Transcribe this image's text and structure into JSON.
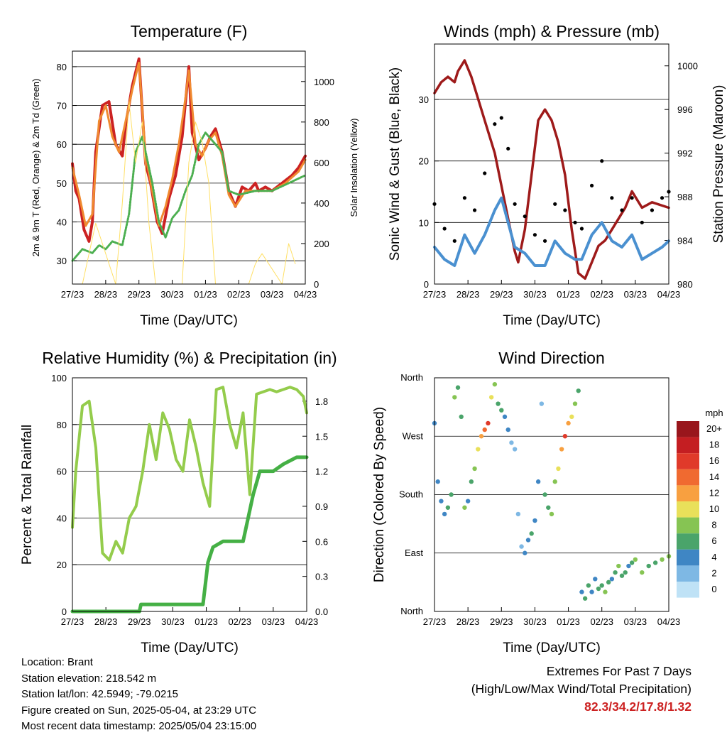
{
  "x_ticks": [
    "27/23",
    "28/23",
    "29/23",
    "30/23",
    "01/23",
    "02/23",
    "03/23",
    "04/23"
  ],
  "info": {
    "location": "Location: Brant",
    "elevation": "Station elevation: 218.542 m",
    "latlon": "Station lat/lon: 42.5949; -79.0215",
    "created": "Figure created on Sun, 2025-05-04, at 23:29 UTC",
    "recent": "Most recent data timestamp: 2025/05/04 23:15:00"
  },
  "extremes": {
    "line1": "Extremes For Past 7 Days",
    "line2": "(High/Low/Max Wind/Total Precipitation)",
    "values": "82.3/34.2/17.8/1.32"
  },
  "colors": {
    "temp2m": "#cc2222",
    "temp9m": "#f08a30",
    "dewpoint": "#4caf50",
    "solar": "#ffe066",
    "wind": "#4a90d0",
    "gust": "#000000",
    "pressure": "#9e1a1a",
    "rh": "#94cc4c",
    "precip": "#45b045"
  },
  "chart_data": [
    {
      "type": "line",
      "title": "Temperature (F)",
      "xlabel": "Time (Day/UTC)",
      "ylabel": "2m & 9m T (Red, Orange) & 2m Td (Green)",
      "ylabel_right": "Solar Insolation (Yellow)",
      "ylim": [
        24,
        84
      ],
      "yticks": [
        30,
        40,
        50,
        60,
        70,
        80
      ],
      "ylim_right": [
        0,
        1150
      ],
      "yticks_right": [
        0,
        200,
        400,
        600,
        800,
        1000
      ],
      "x_day_range": [
        0,
        7
      ],
      "series": [
        {
          "key": "temp2m",
          "x": [
            0,
            0.1,
            0.2,
            0.35,
            0.5,
            0.6,
            0.7,
            0.9,
            1.1,
            1.3,
            1.5,
            1.6,
            1.8,
            2.0,
            2.2,
            2.35,
            2.55,
            2.7,
            2.9,
            3.1,
            3.3,
            3.5,
            3.6,
            3.8,
            4.0,
            4.15,
            4.3,
            4.5,
            4.7,
            4.9,
            5.1,
            5.3,
            5.5,
            5.6,
            5.8,
            6.0,
            6.3,
            6.6,
            6.8,
            7.0
          ],
          "y": [
            55,
            48,
            46,
            38,
            35,
            40,
            58,
            70,
            71,
            60,
            57,
            65,
            75,
            82,
            55,
            50,
            40,
            37,
            46,
            52,
            62,
            80,
            63,
            56,
            59,
            62,
            64,
            58,
            48,
            44,
            49,
            48,
            50,
            48,
            49,
            48,
            50,
            52,
            54,
            57
          ]
        },
        {
          "key": "temp9m",
          "x": [
            0,
            0.2,
            0.4,
            0.6,
            0.8,
            1.0,
            1.2,
            1.4,
            1.6,
            1.8,
            2.0,
            2.2,
            2.4,
            2.6,
            2.8,
            3.0,
            3.2,
            3.4,
            3.5,
            3.7,
            3.9,
            4.1,
            4.3,
            4.5,
            4.7,
            4.9,
            5.2,
            5.6,
            6.0,
            6.4,
            6.8,
            7.0
          ],
          "y": [
            54,
            47,
            39,
            42,
            66,
            70,
            62,
            58,
            66,
            74,
            81,
            57,
            48,
            39,
            44,
            51,
            60,
            72,
            79,
            60,
            57,
            61,
            63,
            57,
            47,
            44,
            48,
            48,
            48,
            50,
            53,
            56
          ]
        },
        {
          "key": "dewpoint",
          "x": [
            0,
            0.3,
            0.6,
            0.8,
            1.0,
            1.2,
            1.5,
            1.7,
            1.9,
            2.1,
            2.4,
            2.6,
            2.8,
            3.0,
            3.2,
            3.4,
            3.6,
            3.8,
            4.0,
            4.3,
            4.5,
            4.7,
            5.0,
            5.5,
            6.0,
            6.5,
            7.0
          ],
          "y": [
            30,
            33,
            32,
            34,
            33,
            35,
            34,
            42,
            58,
            62,
            50,
            40,
            36,
            41,
            43,
            48,
            52,
            60,
            63,
            60,
            58,
            48,
            47,
            48,
            48,
            50,
            52
          ]
        },
        {
          "key": "solar",
          "x": [
            0.3,
            0.5,
            0.7,
            0.9,
            1.3,
            1.5,
            1.7,
            1.9,
            2.1,
            2.3,
            2.5,
            3.3,
            3.5,
            3.7,
            3.9,
            4.1,
            4.3,
            5.3,
            5.5,
            5.7,
            6.3,
            6.5,
            6.7
          ],
          "y": [
            0,
            150,
            300,
            200,
            0,
            400,
            900,
            600,
            800,
            300,
            0,
            0,
            600,
            800,
            700,
            500,
            0,
            0,
            100,
            150,
            0,
            200,
            100
          ]
        }
      ]
    },
    {
      "type": "line",
      "title": "Winds (mph) & Pressure (mb)",
      "xlabel": "Time (Day/UTC)",
      "ylabel": "Sonic Wind & Gust (Blue, Black)",
      "ylabel_right": "Station Pressure (Maroon)",
      "ylim": [
        0,
        39
      ],
      "yticks": [
        0,
        10,
        20,
        30
      ],
      "ylim_right": [
        980,
        1002
      ],
      "yticks_right": [
        980,
        984,
        988,
        992,
        996,
        1000
      ],
      "x_day_range": [
        0,
        7
      ],
      "series": [
        {
          "key": "pressure",
          "x": [
            0,
            0.2,
            0.4,
            0.6,
            0.7,
            0.9,
            1.1,
            1.3,
            1.5,
            1.8,
            2.0,
            2.2,
            2.4,
            2.5,
            2.7,
            2.9,
            3.1,
            3.3,
            3.5,
            3.7,
            3.9,
            4.1,
            4.3,
            4.5,
            4.7,
            4.9,
            5.1,
            5.3,
            5.5,
            5.7,
            5.9,
            6.2,
            6.5,
            7.0
          ],
          "y": [
            997.5,
            998.5,
            999,
            998.5,
            999.5,
            1000.5,
            999,
            997,
            995,
            992,
            989,
            986,
            983,
            982,
            985,
            990,
            995,
            996,
            995,
            993,
            990,
            985,
            981,
            980.5,
            982,
            983.5,
            984,
            985,
            986,
            987,
            988.5,
            987,
            987.5,
            987
          ]
        },
        {
          "key": "wind",
          "x": [
            0,
            0.3,
            0.6,
            0.9,
            1.2,
            1.5,
            1.8,
            2.0,
            2.2,
            2.4,
            2.7,
            3.0,
            3.3,
            3.6,
            3.9,
            4.2,
            4.4,
            4.7,
            5.0,
            5.3,
            5.6,
            5.9,
            6.2,
            6.5,
            6.8,
            7.0
          ],
          "y": [
            6,
            4,
            3,
            8,
            5,
            8,
            12,
            14,
            10,
            6,
            5,
            3,
            3,
            7,
            5,
            4,
            4,
            8,
            10,
            7,
            6,
            8,
            4,
            5,
            6,
            7
          ]
        },
        {
          "key": "gust",
          "x": [
            0,
            0.3,
            0.6,
            0.9,
            1.2,
            1.5,
            1.8,
            2.0,
            2.2,
            2.4,
            2.7,
            3.0,
            3.3,
            3.6,
            3.9,
            4.2,
            4.4,
            4.7,
            5.0,
            5.3,
            5.6,
            5.9,
            6.2,
            6.5,
            6.8,
            7.0
          ],
          "y": [
            13,
            9,
            7,
            14,
            12,
            18,
            26,
            27,
            22,
            13,
            11,
            8,
            7,
            13,
            12,
            10,
            9,
            16,
            20,
            14,
            12,
            14,
            10,
            12,
            14,
            15
          ]
        }
      ]
    },
    {
      "type": "line",
      "title": "Relative Humidity (%) & Precipitation (in)",
      "xlabel": "Time (Day/UTC)",
      "ylabel": "Percent & Total Rainfall",
      "ylim": [
        0,
        100
      ],
      "yticks": [
        0,
        20,
        40,
        60,
        80,
        100
      ],
      "ylim_right": [
        0,
        2.0
      ],
      "yticks_right": [
        "0.0",
        "0.3",
        "0.6",
        "0.9",
        "1.2",
        "1.5",
        "1.8"
      ],
      "x_day_range": [
        0,
        7
      ],
      "series": [
        {
          "key": "rh",
          "x": [
            0,
            0.1,
            0.3,
            0.5,
            0.7,
            0.9,
            1.1,
            1.3,
            1.5,
            1.7,
            1.9,
            2.1,
            2.3,
            2.5,
            2.7,
            2.9,
            3.1,
            3.3,
            3.5,
            3.7,
            3.9,
            4.1,
            4.3,
            4.5,
            4.7,
            4.9,
            5.1,
            5.3,
            5.5,
            5.7,
            5.9,
            6.1,
            6.3,
            6.5,
            6.7,
            6.9,
            7.0
          ],
          "y": [
            36,
            60,
            88,
            90,
            70,
            25,
            22,
            30,
            25,
            40,
            45,
            60,
            80,
            65,
            85,
            78,
            65,
            60,
            82,
            70,
            55,
            45,
            95,
            96,
            80,
            70,
            85,
            50,
            93,
            94,
            95,
            94,
            95,
            96,
            95,
            92,
            85
          ]
        },
        {
          "key": "precip",
          "x": [
            0,
            1.0,
            2.0,
            2.05,
            3.0,
            3.9,
            4.0,
            4.05,
            4.2,
            4.5,
            5.0,
            5.1,
            5.4,
            5.6,
            5.8,
            6.0,
            6.3,
            6.7,
            7.0
          ],
          "y": [
            0,
            0,
            0,
            0.06,
            0.06,
            0.06,
            0.3,
            0.42,
            0.55,
            0.6,
            0.6,
            0.6,
            1.0,
            1.2,
            1.2,
            1.2,
            1.26,
            1.32,
            1.32
          ]
        }
      ]
    },
    {
      "type": "scatter",
      "title": "Wind Direction",
      "xlabel": "Time (Day/UTC)",
      "ylabel": "Direction (Colored By Speed)",
      "y_categories": [
        "North",
        "East",
        "South",
        "West",
        "North"
      ],
      "x_day_range": [
        0,
        7
      ],
      "colorbar_title": "mph",
      "colorbar_labels": [
        "20+",
        "18",
        "16",
        "14",
        "12",
        "10",
        "8",
        "6",
        "4",
        "2",
        "0"
      ],
      "colorbar_colors": [
        "#99161c",
        "#c41e22",
        "#e03a2a",
        "#f06a30",
        "#f8a040",
        "#e9e05a",
        "#86c453",
        "#4aa46a",
        "#3f86c4",
        "#7eb8e4",
        "#bfe2f6"
      ],
      "points_deg": {
        "x": [
          0,
          0.1,
          0.2,
          0.3,
          0.4,
          0.5,
          0.6,
          0.7,
          0.8,
          0.9,
          1.0,
          1.1,
          1.2,
          1.3,
          1.4,
          1.5,
          1.6,
          1.7,
          1.8,
          1.9,
          2.0,
          2.1,
          2.2,
          2.3,
          2.4,
          2.5,
          2.6,
          2.7,
          2.8,
          2.9,
          3.0,
          3.1,
          3.2,
          3.3,
          3.4,
          3.5,
          3.6,
          3.7,
          3.8,
          3.9,
          4.0,
          4.1,
          4.2,
          4.3,
          4.4,
          4.5,
          4.6,
          4.7,
          4.8,
          4.9,
          5.0,
          5.1,
          5.2,
          5.3,
          5.4,
          5.5,
          5.6,
          5.7,
          5.8,
          5.9,
          6.0,
          6.2,
          6.4,
          6.6,
          6.8,
          7.0
        ],
        "y": [
          290,
          200,
          170,
          150,
          160,
          180,
          330,
          345,
          300,
          160,
          170,
          200,
          220,
          250,
          270,
          280,
          290,
          330,
          350,
          320,
          310,
          300,
          280,
          260,
          250,
          150,
          100,
          90,
          110,
          120,
          140,
          200,
          320,
          180,
          160,
          150,
          200,
          220,
          250,
          270,
          290,
          300,
          320,
          340,
          30,
          20,
          40,
          30,
          50,
          35,
          40,
          30,
          45,
          50,
          60,
          70,
          55,
          60,
          70,
          75,
          80,
          60,
          70,
          75,
          80,
          85
        ],
        "speed": [
          4,
          3,
          3,
          4,
          5,
          6,
          7,
          5,
          6,
          7,
          4,
          5,
          8,
          9,
          11,
          14,
          15,
          10,
          8,
          6,
          5,
          4,
          3,
          2,
          2,
          1,
          2,
          3,
          4,
          5,
          4,
          3,
          2,
          5,
          6,
          7,
          8,
          9,
          12,
          15,
          12,
          9,
          7,
          5,
          4,
          6,
          5,
          4,
          3,
          5,
          6,
          7,
          5,
          4,
          6,
          7,
          6,
          5,
          4,
          6,
          7,
          8,
          6,
          5,
          7,
          8
        ]
      }
    }
  ]
}
